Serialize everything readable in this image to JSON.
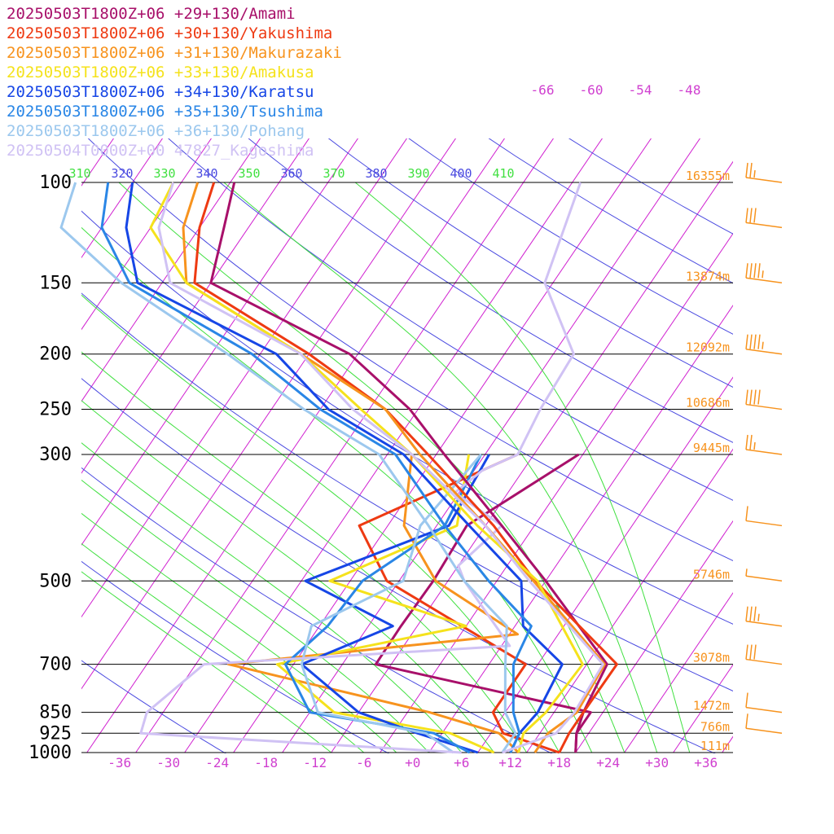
{
  "chart_data": {
    "type": "line",
    "subtype": "skew-T log-P diagram",
    "y_axis": {
      "label": "",
      "scale": "log-pressure",
      "range_hpa": [
        1000,
        100
      ],
      "ticks": [
        {
          "p": 100,
          "label": "100",
          "height_label": "16355m"
        },
        {
          "p": 150,
          "label": "150",
          "height_label": "13874m"
        },
        {
          "p": 200,
          "label": "200",
          "height_label": "12092m"
        },
        {
          "p": 250,
          "label": "250",
          "height_label": "10686m"
        },
        {
          "p": 300,
          "label": "300",
          "height_label": "9445m"
        },
        {
          "p": 500,
          "label": "500",
          "height_label": "5746m"
        },
        {
          "p": 700,
          "label": "700",
          "height_label": "3078m"
        },
        {
          "p": 850,
          "label": "850",
          "height_label": "1472m"
        },
        {
          "p": 925,
          "label": "925",
          "height_label": "766m"
        },
        {
          "p": 1000,
          "label": "1000",
          "height_label": "111m"
        }
      ]
    },
    "x_axis": {
      "label": "",
      "unit": "°C",
      "range": [
        -40,
        40
      ],
      "ticks": [
        "-36",
        "-30",
        "-24",
        "-18",
        "-12",
        "-6",
        "+0",
        "+6",
        "+12",
        "+18",
        "+24",
        "+30",
        "+36"
      ],
      "tick_values": [
        -36,
        -30,
        -24,
        -18,
        -12,
        -6,
        0,
        6,
        12,
        18,
        24,
        30,
        36
      ]
    },
    "upper_isotherm_labels": [
      "-66",
      "-60",
      "-54",
      "-48"
    ],
    "theta_labels": [
      "310",
      "320",
      "330",
      "340",
      "350",
      "360",
      "370",
      "380",
      "390",
      "400",
      "410"
    ],
    "grid": true,
    "legend_position": "top-left",
    "series": [
      {
        "name": "20250503T1800Z+06 +29+130/Amami",
        "color": "#a8106a",
        "temp": [
          [
            1000,
            20
          ],
          [
            925,
            18.5
          ],
          [
            850,
            17.6
          ],
          [
            700,
            16.5
          ],
          [
            500,
            2
          ],
          [
            400,
            -8
          ],
          [
            300,
            -21
          ],
          [
            250,
            -29
          ],
          [
            200,
            -41
          ],
          [
            150,
            -64
          ],
          [
            120,
            -67
          ],
          [
            100,
            -69.5
          ]
        ],
        "dewpt": [
          [
            1000,
            20
          ],
          [
            925,
            18.5
          ],
          [
            850,
            18.5
          ],
          [
            700,
            -11.9
          ],
          [
            600,
            -12
          ],
          [
            500,
            -11.8
          ],
          [
            400,
            -12.3
          ],
          [
            300,
            -4.5
          ]
        ]
      },
      {
        "name": "20250503T1800Z+06 +30+130/Yakushima",
        "color": "#ee3a12",
        "temp": [
          [
            1000,
            18
          ],
          [
            925,
            17.6
          ],
          [
            850,
            17.6
          ],
          [
            700,
            17.7
          ],
          [
            500,
            0.7
          ],
          [
            400,
            -9
          ],
          [
            300,
            -23
          ],
          [
            250,
            -32
          ],
          [
            200,
            -46
          ],
          [
            150,
            -66
          ],
          [
            120,
            -70
          ],
          [
            100,
            -72
          ]
        ],
        "dewpt": [
          [
            1000,
            18
          ],
          [
            925,
            9.5
          ],
          [
            850,
            6.5
          ],
          [
            700,
            6.5
          ],
          [
            500,
            -17.5
          ],
          [
            400,
            -25.5
          ],
          [
            300,
            -12
          ]
        ]
      },
      {
        "name": "20250503T1800Z+06 +31+130/Makurazaki",
        "color": "#f7931e",
        "temp": [
          [
            1000,
            15
          ],
          [
            925,
            15
          ],
          [
            850,
            16.8
          ],
          [
            700,
            16.2
          ],
          [
            500,
            0.5
          ],
          [
            400,
            -10
          ],
          [
            300,
            -24
          ],
          [
            250,
            -32
          ],
          [
            200,
            -47
          ],
          [
            150,
            -67
          ],
          [
            120,
            -72
          ],
          [
            100,
            -74
          ]
        ],
        "dewpt": [
          [
            1000,
            13
          ],
          [
            925,
            9
          ],
          [
            850,
            -1.3
          ],
          [
            700,
            -30
          ],
          [
            620,
            3
          ],
          [
            500,
            -11.5
          ],
          [
            400,
            -20
          ],
          [
            300,
            -25
          ]
        ]
      },
      {
        "name": "20250503T1800Z+06 +33+130/Amakusa",
        "color": "#f5e21c",
        "temp": [
          [
            1000,
            13
          ],
          [
            925,
            12
          ],
          [
            850,
            13
          ],
          [
            700,
            13.5
          ],
          [
            500,
            1
          ],
          [
            400,
            -11
          ],
          [
            300,
            -25
          ],
          [
            250,
            -35
          ],
          [
            200,
            -47
          ],
          [
            150,
            -67
          ],
          [
            120,
            -76
          ],
          [
            100,
            -77
          ]
        ],
        "dewpt": [
          [
            1000,
            10
          ],
          [
            925,
            3
          ],
          [
            850,
            -13
          ],
          [
            700,
            -24
          ],
          [
            600,
            -4
          ],
          [
            500,
            -24.5
          ],
          [
            400,
            -13.5
          ],
          [
            300,
            -18
          ]
        ]
      },
      {
        "name": "20250503T1800Z+06 +34+130/Karatsu",
        "color": "#1646e6",
        "temp": [
          [
            1000,
            12
          ],
          [
            925,
            11.5
          ],
          [
            850,
            12
          ],
          [
            700,
            11
          ],
          [
            600,
            3
          ],
          [
            500,
            -1
          ],
          [
            400,
            -12
          ],
          [
            300,
            -26
          ],
          [
            250,
            -39
          ],
          [
            200,
            -50
          ],
          [
            150,
            -73
          ],
          [
            120,
            -79
          ],
          [
            100,
            -82
          ]
        ],
        "dewpt": [
          [
            1000,
            8
          ],
          [
            925,
            -1
          ],
          [
            850,
            -10
          ],
          [
            700,
            -21
          ],
          [
            600,
            -13
          ],
          [
            500,
            -27.5
          ],
          [
            400,
            -14.5
          ],
          [
            300,
            -15.5
          ]
        ]
      },
      {
        "name": "20250503T1800Z+06 +35+130/Tsushima",
        "color": "#2a86e6",
        "temp": [
          [
            1000,
            12
          ],
          [
            925,
            11.5
          ],
          [
            850,
            9
          ],
          [
            700,
            5
          ],
          [
            600,
            4
          ],
          [
            500,
            -5
          ],
          [
            400,
            -15
          ],
          [
            300,
            -27
          ],
          [
            250,
            -40
          ],
          [
            200,
            -53
          ],
          [
            150,
            -74
          ],
          [
            120,
            -82
          ],
          [
            100,
            -85
          ]
        ],
        "dewpt": [
          [
            1000,
            7
          ],
          [
            925,
            1
          ],
          [
            850,
            -16
          ],
          [
            700,
            -23
          ],
          [
            600,
            -21
          ],
          [
            500,
            -20.5
          ],
          [
            400,
            -15
          ],
          [
            300,
            -16.5
          ]
        ]
      },
      {
        "name": "20250503T1800Z+06 +36+130/Pohang",
        "color": "#9cc8ee",
        "temp": [
          [
            1000,
            11
          ],
          [
            925,
            11
          ],
          [
            850,
            8
          ],
          [
            700,
            4
          ],
          [
            600,
            1
          ],
          [
            500,
            -8
          ],
          [
            400,
            -17
          ],
          [
            300,
            -29
          ],
          [
            250,
            -42
          ],
          [
            200,
            -56
          ],
          [
            150,
            -75
          ],
          [
            120,
            -87
          ],
          [
            100,
            -89
          ]
        ],
        "dewpt": [
          [
            1000,
            5
          ],
          [
            925,
            0
          ],
          [
            850,
            -15
          ],
          [
            700,
            -21
          ],
          [
            600,
            -23
          ],
          [
            500,
            -15.5
          ],
          [
            400,
            -18
          ],
          [
            300,
            -16.5
          ]
        ]
      },
      {
        "name": "20250504T0000Z+00 47827_Kagoshima",
        "color": "#d0c2f4",
        "temp": [
          [
            1000,
            11
          ],
          [
            925,
            16
          ],
          [
            850,
            16.5
          ],
          [
            700,
            16
          ],
          [
            500,
            0
          ],
          [
            400,
            -10
          ],
          [
            300,
            -25
          ],
          [
            250,
            -36
          ],
          [
            200,
            -47
          ],
          [
            150,
            -69
          ],
          [
            120,
            -75
          ],
          [
            100,
            -77
          ]
        ],
        "dewpt": [
          [
            1000,
            6
          ],
          [
            925,
            -35
          ],
          [
            850,
            -36
          ],
          [
            700,
            -33
          ],
          [
            650,
            3
          ],
          [
            500,
            -8
          ],
          [
            470,
            -10
          ],
          [
            400,
            -8
          ],
          [
            350,
            -16.5
          ],
          [
            320,
            -15
          ],
          [
            300,
            -12
          ],
          [
            250,
            -13
          ],
          [
            200,
            -13.5
          ],
          [
            150,
            -23
          ],
          [
            100,
            -27
          ]
        ]
      }
    ],
    "wind_barbs": [
      {
        "p": 100,
        "speed_kt": 25,
        "dir_deg": 270
      },
      {
        "p": 120,
        "speed_kt": 30,
        "dir_deg": 270
      },
      {
        "p": 150,
        "speed_kt": 45,
        "dir_deg": 270
      },
      {
        "p": 200,
        "speed_kt": 45,
        "dir_deg": 270
      },
      {
        "p": 250,
        "speed_kt": 40,
        "dir_deg": 270
      },
      {
        "p": 300,
        "speed_kt": 25,
        "dir_deg": 270
      },
      {
        "p": 400,
        "speed_kt": 10,
        "dir_deg": 270
      },
      {
        "p": 500,
        "speed_kt": 5,
        "dir_deg": 270
      },
      {
        "p": 600,
        "speed_kt": 35,
        "dir_deg": 270
      },
      {
        "p": 700,
        "speed_kt": 30,
        "dir_deg": 270
      },
      {
        "p": 850,
        "speed_kt": 10,
        "dir_deg": 200
      },
      {
        "p": 925,
        "speed_kt": 10,
        "dir_deg": 240
      }
    ]
  }
}
